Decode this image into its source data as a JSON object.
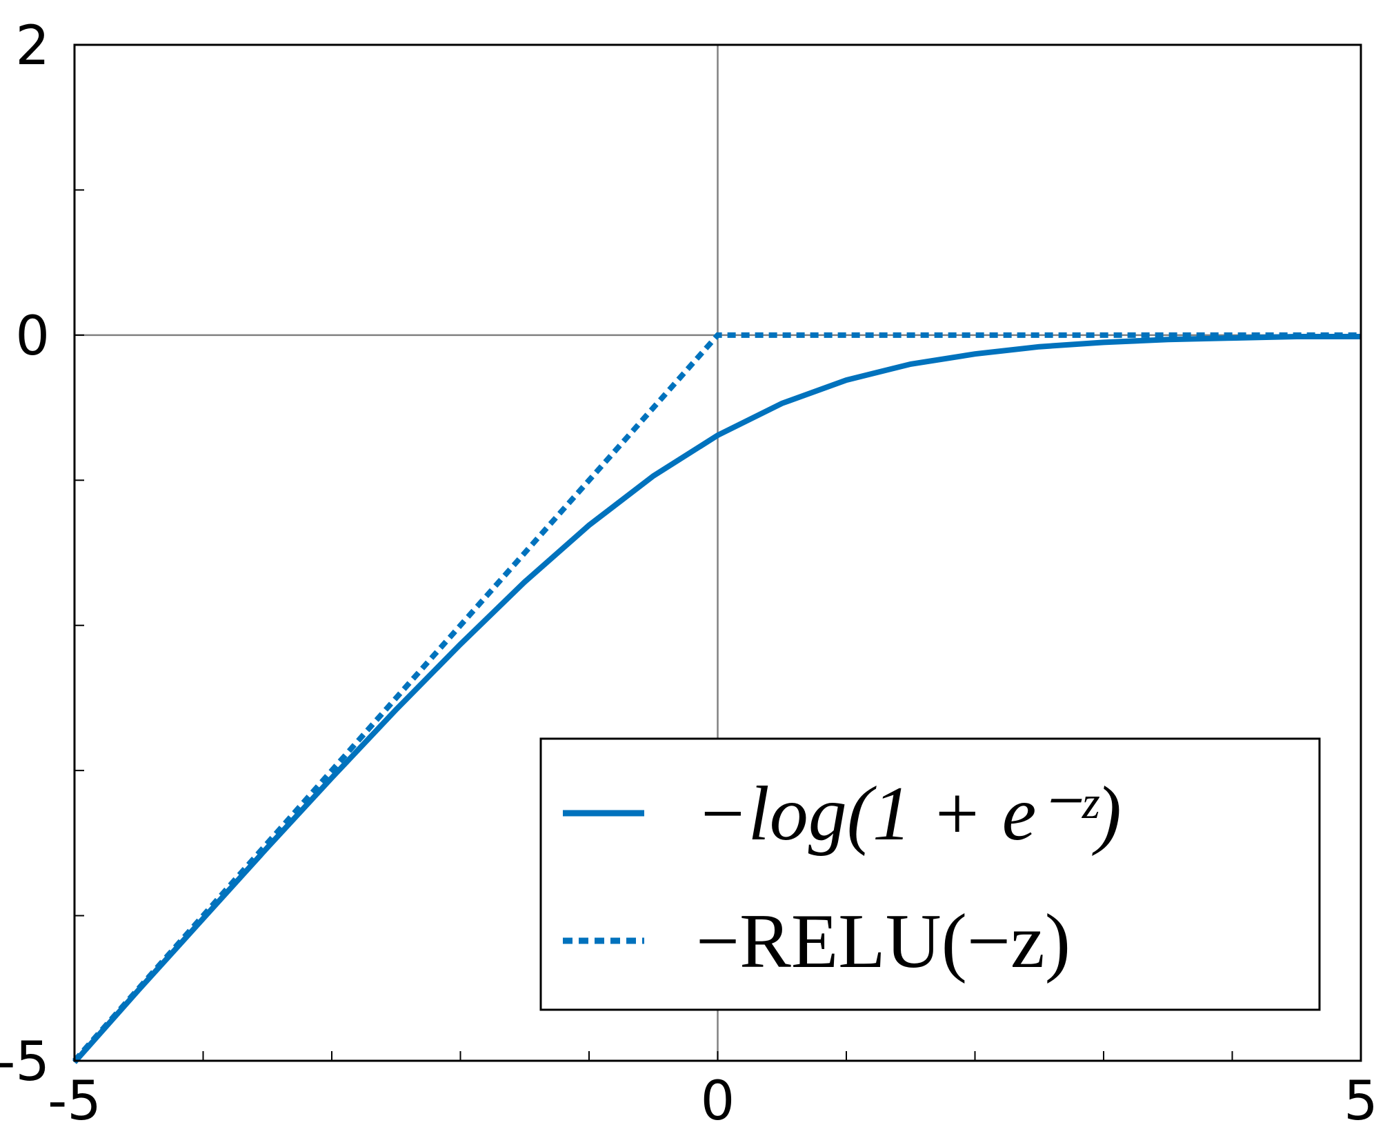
{
  "chart_data": {
    "type": "line",
    "series": [
      {
        "name": "−log(1 + e⁻ᶻ)",
        "color": "#0072bd",
        "dash": false,
        "x": [
          -5,
          -4.5,
          -4,
          -3.5,
          -3,
          -2.5,
          -2,
          -1.5,
          -1,
          -0.5,
          0,
          0.5,
          1,
          1.5,
          2,
          2.5,
          3,
          3.5,
          4,
          4.5,
          5
        ],
        "values": [
          -5.01,
          -4.51,
          -4.02,
          -3.53,
          -3.05,
          -2.58,
          -2.13,
          -1.7,
          -1.31,
          -0.97,
          -0.69,
          -0.47,
          -0.31,
          -0.2,
          -0.13,
          -0.08,
          -0.05,
          -0.03,
          -0.02,
          -0.01,
          -0.01
        ]
      },
      {
        "name": "−RELU(−z)",
        "color": "#0072bd",
        "dash": true,
        "x": [
          -5,
          0,
          5
        ],
        "values": [
          -5,
          0,
          0
        ]
      }
    ],
    "xlim": [
      -5,
      5
    ],
    "ylim": [
      -5,
      2
    ],
    "xticks": [
      -5,
      0,
      5
    ],
    "yticks": [
      -5,
      0,
      2
    ],
    "xminorticks": [
      -4,
      -3,
      -2,
      -1,
      1,
      2,
      3,
      4
    ],
    "yminorticks": [
      -4,
      -3,
      -2,
      -1,
      1
    ],
    "zero_lines": true,
    "legend": "lower right"
  }
}
